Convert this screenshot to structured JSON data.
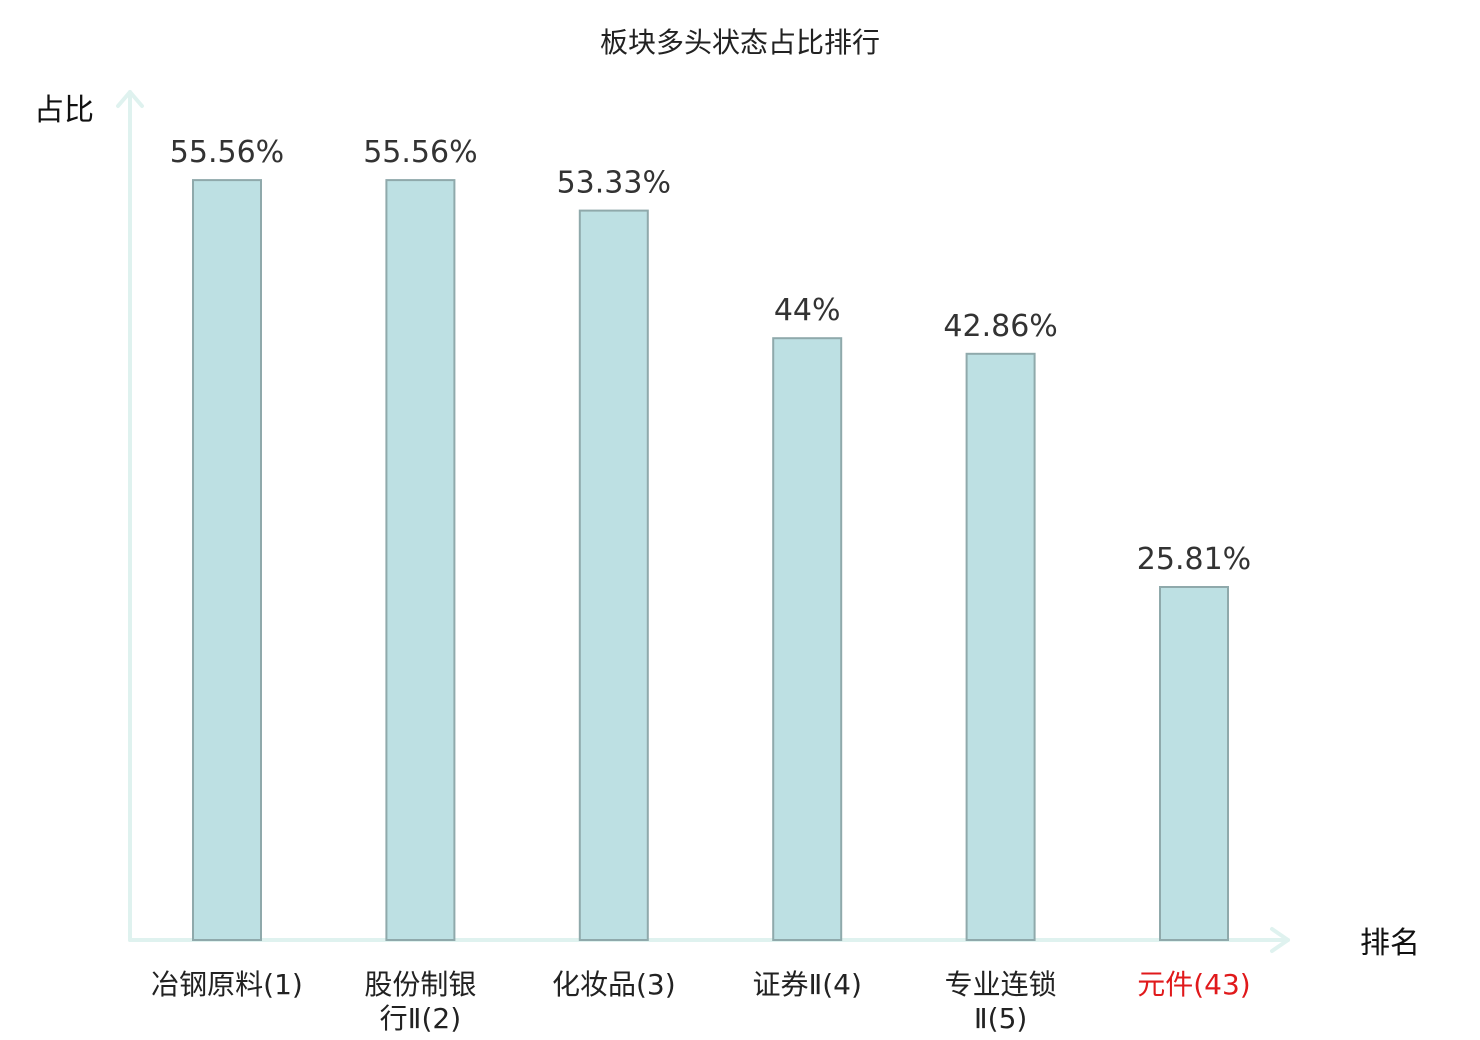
{
  "chart_data": {
    "type": "bar",
    "title": "板块多头状态占比排行",
    "xlabel": "排名",
    "ylabel": "占比",
    "categories": [
      [
        "冶钢原料(1)"
      ],
      [
        "股份制银",
        "行Ⅱ(2)"
      ],
      [
        "化妆品(3)"
      ],
      [
        "证券Ⅱ(4)"
      ],
      [
        "专业连锁",
        "Ⅱ(5)"
      ],
      [
        "元件(43)"
      ]
    ],
    "values": [
      55.56,
      55.56,
      53.33,
      44,
      42.86,
      25.81
    ],
    "value_labels": [
      "55.56%",
      "55.56%",
      "53.33%",
      "44%",
      "42.86%",
      "25.81%"
    ],
    "highlight_index": 5,
    "ylim": [
      0,
      62
    ],
    "grid": false,
    "colors": {
      "bar_fill": "#bde0e3",
      "bar_stroke": "#8fa9ab",
      "axis": "#dff2ef",
      "highlight_text": "#e0191b"
    }
  }
}
